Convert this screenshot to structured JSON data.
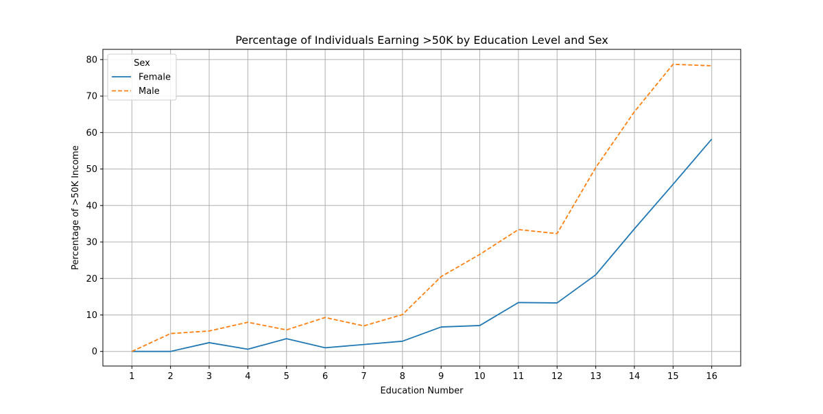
{
  "chart_data": {
    "type": "line",
    "title": "Percentage of Individuals Earning >50K by Education Level and Sex",
    "xlabel": "Education Number",
    "ylabel": "Percentage of >50K Income",
    "x": [
      1,
      2,
      3,
      4,
      5,
      6,
      7,
      8,
      9,
      10,
      11,
      12,
      13,
      14,
      15,
      16
    ],
    "x_tick_labels": [
      "1",
      "2",
      "3",
      "4",
      "5",
      "6",
      "7",
      "8",
      "9",
      "10",
      "11",
      "12",
      "13",
      "14",
      "15",
      "16"
    ],
    "y_ticks": [
      0,
      10,
      20,
      30,
      40,
      50,
      60,
      70,
      80
    ],
    "y_tick_labels": [
      "0",
      "10",
      "20",
      "30",
      "40",
      "50",
      "60",
      "70",
      "80"
    ],
    "xlim": [
      0.25,
      16.75
    ],
    "ylim": [
      -4.0,
      82.8
    ],
    "grid": true,
    "legend": {
      "title": "Sex",
      "placement": "upper-left"
    },
    "series": [
      {
        "name": "Female",
        "color": "#1f77b4",
        "line_style": "solid",
        "values": [
          0.0,
          0.0,
          2.4,
          0.6,
          3.5,
          1.0,
          1.9,
          2.8,
          6.7,
          7.1,
          13.4,
          13.3,
          21.0,
          33.6,
          45.8,
          58.2
        ]
      },
      {
        "name": "Male",
        "color": "#ff7f0e",
        "line_style": "dashed",
        "values": [
          0.0,
          4.9,
          5.6,
          8.0,
          5.9,
          9.3,
          7.0,
          10.1,
          20.5,
          26.6,
          33.4,
          32.3,
          50.4,
          65.7,
          78.7,
          78.3
        ]
      }
    ]
  }
}
